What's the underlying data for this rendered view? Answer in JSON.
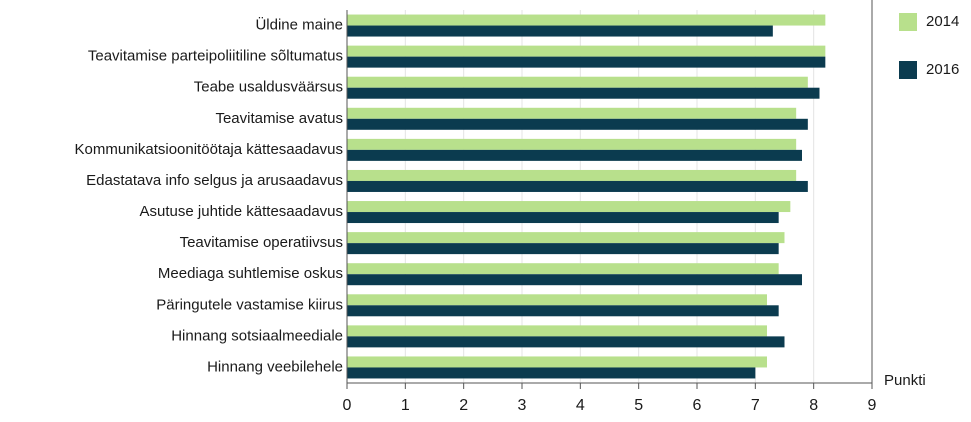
{
  "chart_data": {
    "type": "barh",
    "x_label": "Punkti",
    "categories": [
      "Üldine maine",
      "Teavitamise parteipoliitiline sõltumatus",
      "Teabe usaldusväärsus",
      "Teavitamise avatus",
      "Kommunikatsioonitöötaja kättesaadavus",
      "Edastatava info selgus ja arusaadavus",
      "Asutuse juhtide kättesaadavus",
      "Teavitamise operatiivsus",
      "Meediaga suhtlemise oskus",
      "Päringutele vastamise kiirus",
      "Hinnang sotsiaalmeediale",
      "Hinnang veebilehele"
    ],
    "series": [
      {
        "name": "2014",
        "color": "#b8e08c",
        "values": [
          8.2,
          8.2,
          7.9,
          7.7,
          7.7,
          7.7,
          7.6,
          7.5,
          7.4,
          7.2,
          7.2,
          7.2
        ]
      },
      {
        "name": "2016",
        "color": "#0b3b4f",
        "values": [
          7.3,
          8.2,
          8.1,
          7.9,
          7.8,
          7.9,
          7.4,
          7.4,
          7.8,
          7.4,
          7.5,
          7.0
        ]
      }
    ],
    "xlim": [
      0,
      9
    ],
    "xticks": [
      0,
      1,
      2,
      3,
      4,
      5,
      6,
      7,
      8,
      9
    ],
    "grid": true,
    "legend": "right"
  }
}
